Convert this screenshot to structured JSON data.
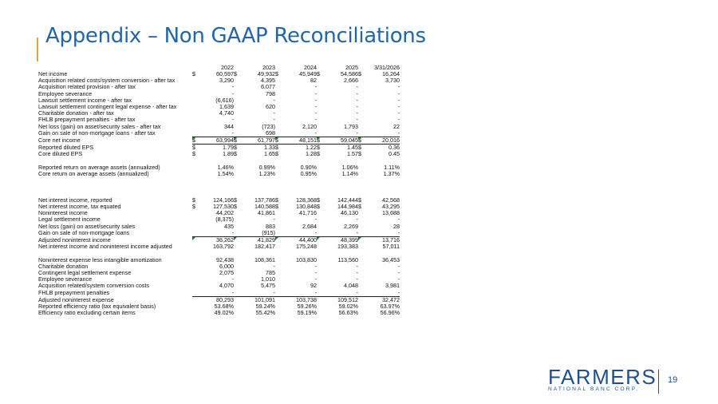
{
  "title": "Appendix – Non GAAP Reconciliations",
  "headers": [
    "2022",
    "2023",
    "2024",
    "2025",
    "3/31/2026"
  ],
  "rows": [
    {
      "label": "Net income",
      "cur": [
        "$",
        "$",
        "$",
        "$",
        "$"
      ],
      "vals": [
        "60,597",
        "49,932",
        "45,949",
        "54,586",
        "16,264"
      ]
    },
    {
      "label": "Acquisition related costs/system conversion - after tax",
      "vals": [
        "3,290",
        "4,395",
        "82",
        "2,666",
        "3,730"
      ]
    },
    {
      "label": "Acquisition related provision - after tax",
      "vals": [
        "-",
        "6,077",
        "-",
        "-",
        "-"
      ]
    },
    {
      "label": "Employee severance",
      "vals": [
        "-",
        "798",
        "-",
        "-",
        "-"
      ]
    },
    {
      "label": "Lawsuit settlement income - after tax",
      "vals": [
        "(6,616)",
        "-",
        "-",
        "-",
        "-"
      ]
    },
    {
      "label": "Lawsuit settlement contingent legal expense - after tax",
      "vals": [
        "1,639",
        "620",
        "-",
        "-",
        "-"
      ]
    },
    {
      "label": "Charitable donation - after tax",
      "vals": [
        "4,740",
        "-",
        "-",
        "-",
        "-"
      ]
    },
    {
      "label": "FHLB prepayment penalties - after tax",
      "vals": [
        "-",
        "-",
        "-",
        "-",
        "-"
      ]
    },
    {
      "label": "Net loss (gain) on asset/security sales - after tax",
      "vals": [
        "344",
        "(723)",
        "2,120",
        "1,793",
        "22"
      ]
    },
    {
      "label": "Gain on sale of non-mortgage loans - after tax",
      "vals": [
        "-",
        "698",
        "-",
        "-",
        "-"
      ],
      "style": "uline"
    },
    {
      "label": "Core net income",
      "cur": [
        "$",
        "$",
        "$",
        "$",
        "$"
      ],
      "vals": [
        "63,994",
        "61,797",
        "48,151",
        "59,045",
        "20,016"
      ],
      "style": "boxed",
      "tri": true
    },
    {
      "label": "Reported diluted EPS",
      "cur": [
        "$",
        "$",
        "$",
        "$",
        "$"
      ],
      "vals": [
        "1.79",
        "1.33",
        "1.22",
        "1.45",
        "0.36"
      ]
    },
    {
      "label": "Core diluted EPS",
      "cur": [
        "$",
        "$",
        "$",
        "$",
        "$"
      ],
      "vals": [
        "1.89",
        "1.65",
        "1.28",
        "1.57",
        "0.45"
      ]
    },
    {
      "spacer": true
    },
    {
      "label": "Reported return on average assets (annualized)",
      "vals": [
        "1.46%",
        "0.99%",
        "0.90%",
        "1.06%",
        "1.11%"
      ]
    },
    {
      "label": "Core return on average assets (annualized)",
      "vals": [
        "1.54%",
        "1.23%",
        "0.95%",
        "1.14%",
        "1.37%"
      ]
    },
    {
      "spacer": true
    },
    {
      "spacer": true
    },
    {
      "spacer": true
    },
    {
      "label": "Net interest income, reported",
      "cur": [
        "$",
        "$",
        "$",
        "$",
        "$"
      ],
      "vals": [
        "124,166",
        "137,786",
        "128,368",
        "142,444",
        "42,568"
      ]
    },
    {
      "label": "Net interest income, tax equated",
      "cur": [
        "$",
        "$",
        "$",
        "$",
        "$"
      ],
      "vals": [
        "127,530",
        "140,588",
        "130,848",
        "144,984",
        "43,295"
      ]
    },
    {
      "label": "Noninterest income",
      "vals": [
        "44,202",
        "41,861",
        "41,716",
        "46,130",
        "13,688"
      ]
    },
    {
      "label": "Legal settlement income",
      "vals": [
        "(8,375)",
        "-",
        "-",
        "-",
        "-"
      ]
    },
    {
      "label": "Net loss (gain) on asset/security sales",
      "vals": [
        "435",
        "883",
        "2,684",
        "2,269",
        "28"
      ]
    },
    {
      "label": "Gain on sale of non-mortgage loans",
      "vals": [
        "-",
        "(915)",
        "-",
        "-",
        "-"
      ],
      "style": "uline"
    },
    {
      "label": "Adjusted noninterest income",
      "vals": [
        "36,262",
        "41,829",
        "44,400",
        "48,399",
        "13,716"
      ],
      "tri": true
    },
    {
      "label": "Net interest income and noninterest income adjusted",
      "vals": [
        "163,792",
        "182,417",
        "175,248",
        "193,383",
        "57,011"
      ]
    },
    {
      "spacer": true
    },
    {
      "label": "Noninterest expense less intangible amortization",
      "vals": [
        "92,438",
        "108,361",
        "103,830",
        "113,560",
        "36,453"
      ]
    },
    {
      "label": "Charitable donation",
      "vals": [
        "6,000",
        "-",
        "-",
        "-",
        "-"
      ]
    },
    {
      "label": "Contingent legal settlement expense",
      "vals": [
        "2,075",
        "785",
        "-",
        "-",
        "-"
      ]
    },
    {
      "label": "Employee severance",
      "vals": [
        "-",
        "1,010",
        "-",
        "-",
        "-"
      ]
    },
    {
      "label": "Acquisition related/system conversion costs",
      "vals": [
        "4,070",
        "5,475",
        "92",
        "4,048",
        "3,981"
      ]
    },
    {
      "label": "FHLB prepayment penalties",
      "vals": [
        "-",
        "-",
        "-",
        "-",
        "-"
      ],
      "style": "uline"
    },
    {
      "label": "Adjusted noninterest expense",
      "vals": [
        "80,293",
        "101,091",
        "103,738",
        "109,512",
        "32,472"
      ]
    },
    {
      "label": "Reported efficiency ratio (tax equivalent basis)",
      "vals": [
        "53.68%",
        "59.24%",
        "59.26%",
        "59.02%",
        "63.97%"
      ]
    },
    {
      "label": "Efficiency ratio excluding certain items",
      "vals": [
        "49.02%",
        "55.42%",
        "59.19%",
        "56.63%",
        "56.96%"
      ]
    }
  ],
  "logo": {
    "main": "FARMERS",
    "sub": "NATIONAL BANC CORP."
  },
  "page_number": "19",
  "colors": {
    "title": "#2266a8",
    "accent": "#e8a33d",
    "brand": "#1d4f91",
    "marker": "#1e7d2e"
  }
}
